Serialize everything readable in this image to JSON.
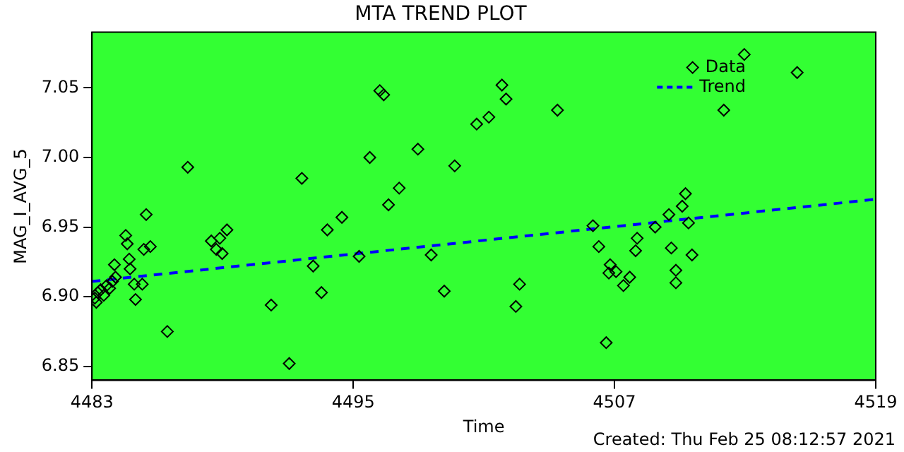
{
  "chart_data": {
    "type": "scatter",
    "title": "MTA TREND PLOT",
    "xlabel": "Time",
    "ylabel": "MAG_I_AVG_5",
    "xlim": [
      4483,
      4519
    ],
    "xticks": [
      4483,
      4495,
      4507,
      4519
    ],
    "ylim": [
      6.84,
      7.09
    ],
    "yticks": [
      6.85,
      {
        "value": 6.9,
        "label": "6.90"
      },
      6.95,
      {
        "value": 7.0,
        "label": "7.00"
      },
      7.05
    ],
    "grid": false,
    "legend": "top right",
    "annotations": [
      "Created: Thu Feb 25 08:12:57 2021"
    ],
    "series": [
      {
        "name": "Data",
        "color": "#000000",
        "marker": "diamond",
        "x": [
          4483.13,
          4483.2,
          4483.27,
          4483.4,
          4483.54,
          4483.67,
          4483.81,
          4483.94,
          4484.08,
          4484.03,
          4484.55,
          4484.62,
          4484.71,
          4484.75,
          4484.94,
          4485.0,
          4485.31,
          4485.38,
          4485.49,
          4485.68,
          4486.46,
          4487.4,
          4488.48,
          4488.71,
          4488.87,
          4488.98,
          4489.2,
          4491.23,
          4492.06,
          4492.64,
          4493.16,
          4493.54,
          4493.81,
          4494.48,
          4495.27,
          4495.76,
          4496.22,
          4496.4,
          4496.62,
          4497.11,
          4497.97,
          4498.58,
          4499.18,
          4499.66,
          4500.67,
          4501.23,
          4501.83,
          4502.02,
          4502.47,
          4502.64,
          4504.38,
          4506.01,
          4506.28,
          4506.62,
          4506.74,
          4506.8,
          4507.07,
          4507.41,
          4507.7,
          4507.97,
          4508.04,
          4508.87,
          4509.5,
          4509.61,
          4509.82,
          4509.82,
          4510.11,
          4510.26,
          4510.4,
          4510.56,
          4512.02,
          4512.96,
          4515.39
        ],
        "values": [
          6.899,
          6.896,
          6.903,
          6.905,
          6.901,
          6.908,
          6.906,
          6.911,
          6.914,
          6.923,
          6.944,
          6.938,
          6.927,
          6.92,
          6.909,
          6.898,
          6.909,
          6.934,
          6.959,
          6.936,
          6.875,
          6.993,
          6.94,
          6.934,
          6.942,
          6.931,
          6.948,
          6.894,
          6.852,
          6.985,
          6.922,
          6.903,
          6.948,
          6.957,
          6.929,
          7.0,
          7.048,
          7.045,
          6.966,
          6.978,
          7.006,
          6.93,
          6.904,
          6.994,
          7.024,
          7.029,
          7.052,
          7.042,
          6.893,
          6.909,
          7.034,
          6.951,
          6.936,
          6.867,
          6.917,
          6.923,
          6.918,
          6.908,
          6.914,
          6.933,
          6.942,
          6.95,
          6.959,
          6.935,
          6.919,
          6.91,
          6.965,
          6.974,
          6.953,
          6.93,
          7.034,
          7.074,
          7.061
        ]
      },
      {
        "name": "Trend",
        "type": "line",
        "color": "#0000ff",
        "line_style": "dashed",
        "x": [
          4483,
          4519
        ],
        "values": [
          6.911,
          6.97
        ]
      }
    ]
  }
}
